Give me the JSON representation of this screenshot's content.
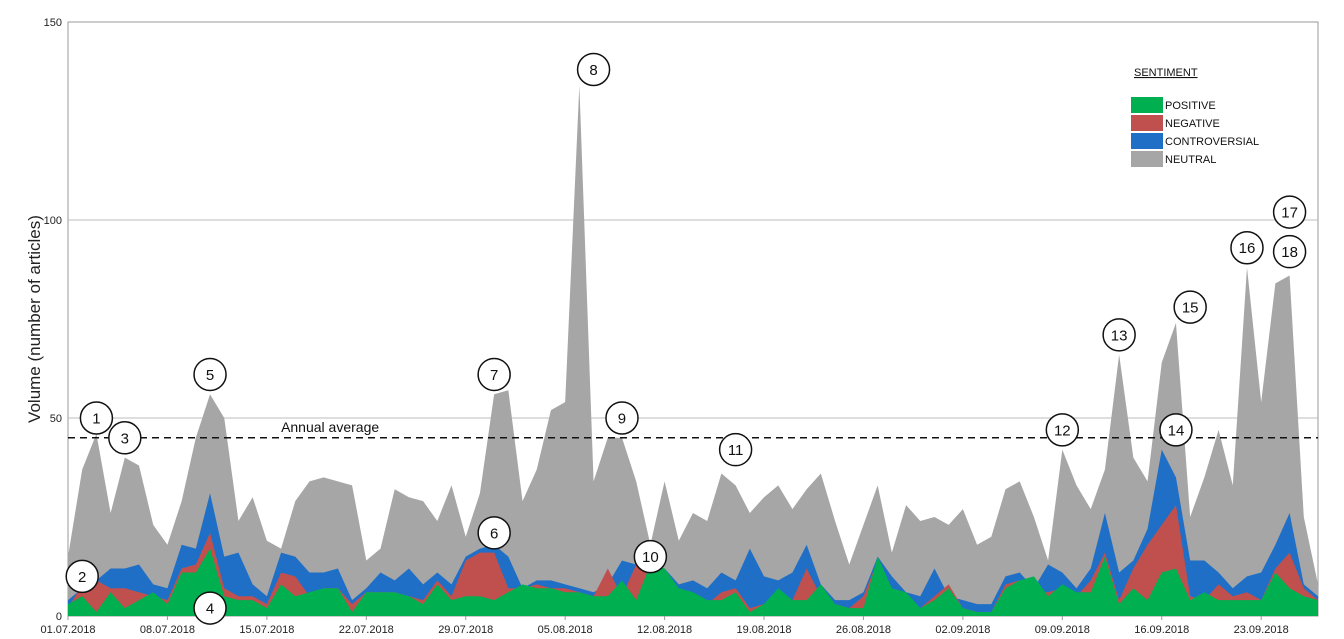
{
  "chart_data": {
    "type": "area",
    "stacking": "overlay",
    "title": "",
    "ylabel": "Volume (number of articles)",
    "xlabel": "",
    "ylim": [
      0,
      150
    ],
    "yticks": [
      0,
      50,
      100,
      150
    ],
    "grid": true,
    "legend_position": "top-right",
    "legend_title": "SENTIMENT",
    "start_date": "01.07.2018",
    "x_tick_labels": [
      "01.07.2018",
      "08.07.2018",
      "15.07.2018",
      "22.07.2018",
      "29.07.2018",
      "05.08.2018",
      "12.08.2018",
      "19.08.2018",
      "26.08.2018",
      "02.09.2018",
      "09.09.2018",
      "16.09.2018",
      "23.09.2018"
    ],
    "annual_average": {
      "value": 45,
      "label": "Annual average"
    },
    "series": [
      {
        "name": "NEUTRAL",
        "color": "#a6a6a6",
        "values": [
          15,
          37,
          46,
          26,
          40,
          38,
          23,
          18,
          29,
          45,
          56,
          50,
          24,
          30,
          19,
          17,
          29,
          34,
          35,
          34,
          33,
          14,
          17,
          32,
          30,
          29,
          24,
          33,
          20,
          31,
          56,
          57,
          29,
          37,
          52,
          54,
          134,
          34,
          45,
          45,
          34,
          18,
          34,
          19,
          26,
          24,
          36,
          33,
          26,
          30,
          33,
          27,
          32,
          36,
          24,
          13,
          23,
          33,
          16,
          28,
          24,
          25,
          23,
          27,
          18,
          20,
          32,
          34,
          25,
          14,
          42,
          33,
          27,
          37,
          66,
          40,
          34,
          64,
          74,
          25,
          35,
          47,
          33,
          88,
          54,
          84,
          86,
          25,
          8
        ]
      },
      {
        "name": "CONTROVERSIAL",
        "color": "#1f6fc7",
        "values": [
          4,
          7,
          9,
          12,
          12,
          13,
          8,
          7,
          18,
          17,
          31,
          15,
          16,
          8,
          5,
          16,
          15,
          11,
          11,
          12,
          4,
          7,
          11,
          9,
          12,
          8,
          11,
          8,
          15,
          17,
          18,
          15,
          7,
          9,
          9,
          8,
          7,
          6,
          8,
          14,
          13,
          12,
          12,
          8,
          9,
          7,
          11,
          9,
          17,
          10,
          9,
          11,
          18,
          8,
          4,
          4,
          6,
          15,
          10,
          6,
          5,
          12,
          5,
          4,
          3,
          3,
          10,
          11,
          7,
          13,
          11,
          7,
          12,
          26,
          11,
          14,
          22,
          42,
          35,
          14,
          14,
          11,
          7,
          10,
          11,
          18,
          26,
          8,
          5
        ]
      },
      {
        "name": "NEGATIVE",
        "color": "#c0504d",
        "values": [
          2,
          8,
          9,
          7,
          7,
          6,
          5,
          4,
          12,
          13,
          21,
          7,
          5,
          5,
          3,
          11,
          10,
          5,
          7,
          7,
          3,
          6,
          6,
          6,
          5,
          4,
          9,
          5,
          14,
          16,
          16,
          7,
          7,
          8,
          7,
          7,
          6,
          5,
          12,
          5,
          13,
          10,
          7,
          6,
          4,
          3,
          6,
          7,
          2,
          3,
          3,
          4,
          12,
          5,
          3,
          2,
          5,
          14,
          5,
          4,
          2,
          5,
          8,
          2,
          1,
          1,
          8,
          9,
          6,
          6,
          7,
          5,
          9,
          16,
          4,
          12,
          18,
          23,
          28,
          5,
          4,
          8,
          5,
          6,
          4,
          12,
          16,
          7,
          4
        ]
      },
      {
        "name": "POSITIVE",
        "color": "#00b050",
        "values": [
          3,
          5,
          1,
          6,
          2,
          4,
          6,
          3,
          11,
          11,
          17,
          5,
          4,
          4,
          2,
          8,
          5,
          6,
          7,
          7,
          1,
          6,
          6,
          6,
          5,
          3,
          8,
          4,
          5,
          5,
          4,
          6,
          8,
          7,
          7,
          6,
          6,
          5,
          5,
          9,
          4,
          13,
          12,
          7,
          6,
          4,
          4,
          6,
          1,
          3,
          7,
          4,
          4,
          8,
          3,
          2,
          2,
          15,
          7,
          6,
          2,
          4,
          7,
          2,
          1,
          1,
          7,
          9,
          10,
          5,
          8,
          6,
          6,
          15,
          3,
          7,
          4,
          11,
          12,
          4,
          6,
          4,
          4,
          4,
          4,
          11,
          7,
          5,
          4
        ]
      }
    ],
    "events": [
      {
        "label": "1",
        "x": 2,
        "y": 50
      },
      {
        "label": "2",
        "x": 1,
        "y": 10
      },
      {
        "label": "3",
        "x": 4,
        "y": 45
      },
      {
        "label": "4",
        "x": 10,
        "y": 2
      },
      {
        "label": "5",
        "x": 10,
        "y": 61
      },
      {
        "label": "6",
        "x": 30,
        "y": 21
      },
      {
        "label": "7",
        "x": 30,
        "y": 61
      },
      {
        "label": "8",
        "x": 37,
        "y": 138
      },
      {
        "label": "9",
        "x": 39,
        "y": 50
      },
      {
        "label": "10",
        "x": 41,
        "y": 15
      },
      {
        "label": "11",
        "x": 47,
        "y": 42
      },
      {
        "label": "12",
        "x": 70,
        "y": 47
      },
      {
        "label": "13",
        "x": 74,
        "y": 71
      },
      {
        "label": "14",
        "x": 78,
        "y": 47
      },
      {
        "label": "15",
        "x": 79,
        "y": 78
      },
      {
        "label": "16",
        "x": 83,
        "y": 93
      },
      {
        "label": "17",
        "x": 86,
        "y": 102
      },
      {
        "label": "18",
        "x": 86,
        "y": 92
      }
    ]
  }
}
